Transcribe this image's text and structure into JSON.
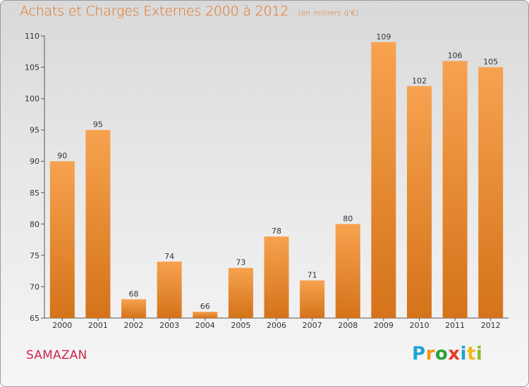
{
  "header": {
    "title": "Achats et Charges Externes 2000 à 2012",
    "unit_note": "(en milliers d'€)"
  },
  "footer": {
    "commune": "SAMAZAN",
    "brand_letters": [
      "P",
      "r",
      "o",
      "x",
      "i",
      "t",
      "i"
    ]
  },
  "colors": {
    "bar_light": "#f7a24f",
    "bar_dark": "#d4731a",
    "title": "#e0701c",
    "commune": "#d0284f"
  },
  "chart_data": {
    "type": "bar",
    "title": "Achats et Charges Externes 2000 à 2012",
    "categories": [
      "2000",
      "2001",
      "2002",
      "2003",
      "2004",
      "2005",
      "2006",
      "2007",
      "2008",
      "2009",
      "2010",
      "2011",
      "2012"
    ],
    "values": [
      90,
      95,
      68,
      74,
      66,
      73,
      78,
      71,
      80,
      109,
      102,
      106,
      105
    ],
    "ylim": [
      65,
      110
    ],
    "yticks": [
      65,
      70,
      75,
      80,
      85,
      90,
      95,
      100,
      105,
      110
    ],
    "xlabel": "",
    "ylabel": "",
    "grid": false,
    "legend": "none"
  }
}
